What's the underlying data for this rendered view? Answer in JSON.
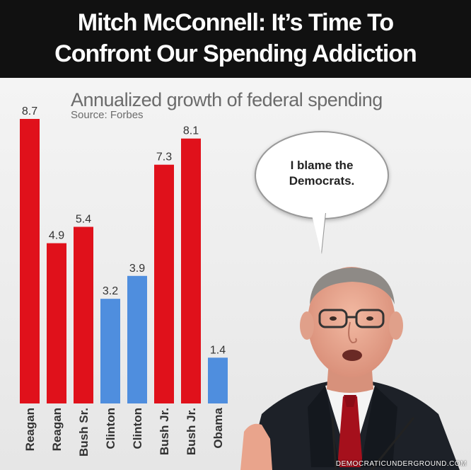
{
  "headline": {
    "line1": "Mitch McConnell: It’s Time To",
    "line2": "Confront Our Spending Addiction"
  },
  "speech_bubble": {
    "line1": "I blame the",
    "line2": "Democrats."
  },
  "watermark": "DEMOCRATICUNDERGROUND.COM",
  "colors": {
    "republican": "#e0111b",
    "democrat": "#4f8ede",
    "headline_bg": "#111111"
  },
  "chart_data": {
    "type": "bar",
    "title": "Annualized growth of federal spending",
    "subtitle": "Source: Forbes",
    "categories": [
      "Reagan",
      "Reagan",
      "Bush Sr.",
      "Clinton",
      "Clinton",
      "Bush Jr.",
      "Bush Jr.",
      "Obama"
    ],
    "values": [
      8.7,
      4.9,
      5.4,
      3.2,
      3.9,
      7.3,
      8.1,
      1.4
    ],
    "value_labels": [
      "8.7",
      "4.9",
      "5.4",
      "3.2",
      "3.9",
      "7.3",
      "8.1",
      "1.4"
    ],
    "bar_colors": [
      "#e0111b",
      "#e0111b",
      "#e0111b",
      "#4f8ede",
      "#4f8ede",
      "#e0111b",
      "#e0111b",
      "#4f8ede"
    ],
    "ylim": [
      0,
      8.7
    ],
    "grid": false,
    "legend": "none",
    "xlabel": "",
    "ylabel": ""
  }
}
